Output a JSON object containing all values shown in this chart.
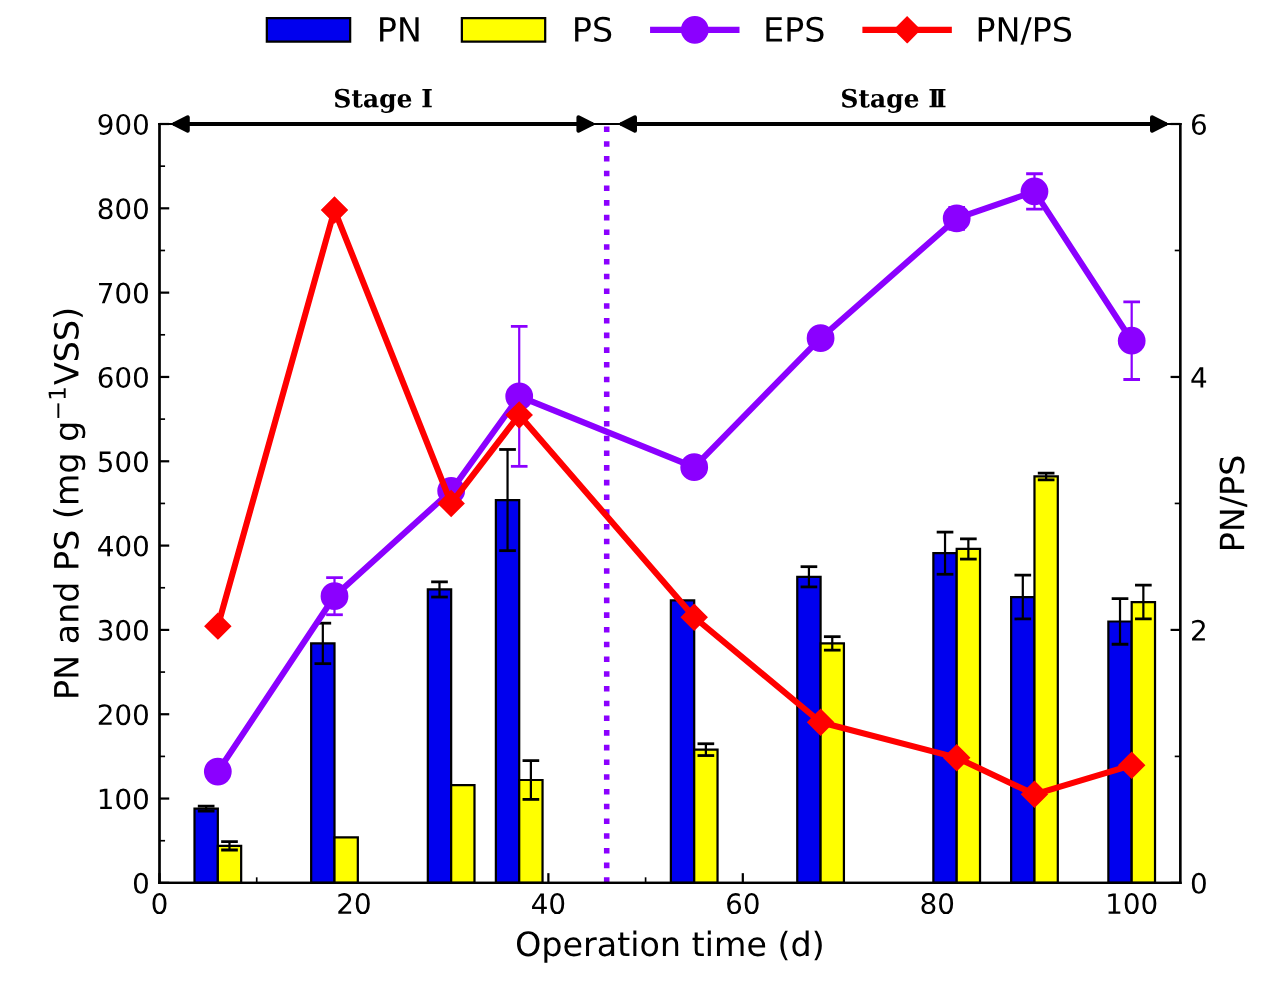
{
  "chart_data": {
    "type": "bar",
    "xlabel": "Operation time (d)",
    "ylabel": "PN and PS (mg g$^{−1}$VSS)",
    "y2label": "PN/PS",
    "x": [
      6,
      18,
      30,
      37,
      55,
      68,
      82,
      90,
      100
    ],
    "series": [
      {
        "name": "PN",
        "color": "#0000ee",
        "values": [
          88,
          284,
          348,
          454,
          335,
          363,
          391,
          339,
          310
        ],
        "errors": [
          3,
          24,
          9,
          60,
          null,
          12,
          25,
          26,
          27
        ]
      },
      {
        "name": "PS",
        "color": "#ffff00",
        "values": [
          44,
          54,
          116,
          122,
          158,
          284,
          396,
          482,
          333
        ],
        "errors": [
          5,
          null,
          null,
          23,
          7,
          8,
          12,
          4,
          20
        ]
      },
      {
        "name": "EPS",
        "type": "line",
        "color": "#8b00ff",
        "marker": "circle",
        "values": [
          132,
          340,
          465,
          577,
          493,
          646,
          788,
          820,
          643
        ],
        "errors": [
          null,
          22,
          null,
          83,
          null,
          null,
          13,
          21,
          46
        ]
      },
      {
        "name": "PN/PS",
        "type": "line",
        "axis": "y2",
        "color": "#ff0000",
        "marker": "diamond",
        "values": [
          2.03,
          5.32,
          3.0,
          3.7,
          2.1,
          1.27,
          0.99,
          0.7,
          0.93
        ]
      }
    ],
    "xlim": [
      0,
      105
    ],
    "xticks": [
      0,
      20,
      40,
      60,
      80,
      100
    ],
    "ylim": [
      0,
      900
    ],
    "yticks": [
      0,
      100,
      200,
      300,
      400,
      500,
      600,
      700,
      800,
      900
    ],
    "y2lim": [
      0,
      6
    ],
    "y2ticks": [
      0,
      2,
      4,
      6
    ],
    "ref_lines": [
      {
        "axis": "x",
        "value": 46,
        "color": "#8b00ff",
        "line_style": "dotted"
      }
    ],
    "annotations": [
      "Stage I",
      "Stage Ⅱ"
    ],
    "legend": "top",
    "grid": false
  }
}
